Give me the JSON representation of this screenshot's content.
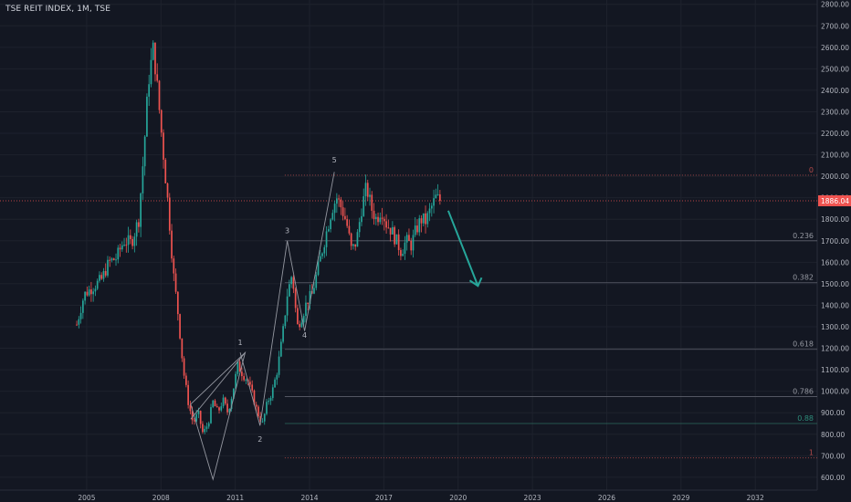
{
  "header": {
    "title": "TSE REIT INDEX, 1M, TSE"
  },
  "colors": {
    "background": "#131722",
    "grid": "#1e222d",
    "up": "#26a69a",
    "down": "#ef5350",
    "axis_text": "#b2b5be",
    "price_badge": "#ef5350",
    "wave_lines": "#9598a1",
    "arrow": "#26a69a",
    "fib_line": "#5d606b"
  },
  "chart_data": {
    "type": "candlestick",
    "symbol": "TSE REIT INDEX",
    "interval": "1M",
    "exchange": "TSE",
    "x_ticks": [
      "2005",
      "2008",
      "2011",
      "2014",
      "2017",
      "2020",
      "2023",
      "2026",
      "2029",
      "2032"
    ],
    "y_ticks": [
      "600.00",
      "700.00",
      "800.00",
      "900.00",
      "1000.00",
      "1100.00",
      "1200.00",
      "1300.00",
      "1400.00",
      "1500.00",
      "1600.00",
      "1700.00",
      "1800.00",
      "1900.00",
      "2000.00",
      "2100.00",
      "2200.00",
      "2300.00",
      "2400.00",
      "2500.00",
      "2600.00",
      "2700.00",
      "2800.00"
    ],
    "ylim": [
      540,
      2820
    ],
    "xlim": [
      2001.5,
      2034.5
    ],
    "current_price": {
      "value": 1886,
      "label": "1886.04"
    },
    "price_path": [
      [
        2004.6,
        1310
      ],
      [
        2004.9,
        1450
      ],
      [
        2005.2,
        1480
      ],
      [
        2005.6,
        1520
      ],
      [
        2005.9,
        1600
      ],
      [
        2006.2,
        1620
      ],
      [
        2006.5,
        1700
      ],
      [
        2006.8,
        1690
      ],
      [
        2007.1,
        1800
      ],
      [
        2007.3,
        2100
      ],
      [
        2007.5,
        2450
      ],
      [
        2007.7,
        2600
      ],
      [
        2007.9,
        2350
      ],
      [
        2008.1,
        2100
      ],
      [
        2008.3,
        1850
      ],
      [
        2008.5,
        1550
      ],
      [
        2008.7,
        1350
      ],
      [
        2008.9,
        1100
      ],
      [
        2009.1,
        950
      ],
      [
        2009.3,
        850
      ],
      [
        2009.5,
        900
      ],
      [
        2009.7,
        800
      ],
      [
        2009.9,
        850
      ],
      [
        2010.1,
        950
      ],
      [
        2010.3,
        900
      ],
      [
        2010.5,
        960
      ],
      [
        2010.7,
        900
      ],
      [
        2010.9,
        1000
      ],
      [
        2011.1,
        1120
      ],
      [
        2011.3,
        1080
      ],
      [
        2011.5,
        1050
      ],
      [
        2011.7,
        980
      ],
      [
        2011.9,
        900
      ],
      [
        2012.1,
        850
      ],
      [
        2012.3,
        950
      ],
      [
        2012.5,
        1000
      ],
      [
        2012.7,
        1100
      ],
      [
        2012.9,
        1250
      ],
      [
        2013.1,
        1450
      ],
      [
        2013.3,
        1550
      ],
      [
        2013.5,
        1300
      ],
      [
        2013.7,
        1350
      ],
      [
        2013.9,
        1420
      ],
      [
        2014.1,
        1450
      ],
      [
        2014.3,
        1550
      ],
      [
        2014.5,
        1650
      ],
      [
        2014.7,
        1750
      ],
      [
        2014.9,
        1850
      ],
      [
        2015.1,
        1900
      ],
      [
        2015.3,
        1850
      ],
      [
        2015.5,
        1780
      ],
      [
        2015.7,
        1650
      ],
      [
        2015.9,
        1700
      ],
      [
        2016.1,
        1850
      ],
      [
        2016.3,
        1950
      ],
      [
        2016.5,
        1850
      ],
      [
        2016.7,
        1800
      ],
      [
        2016.9,
        1850
      ],
      [
        2017.1,
        1780
      ],
      [
        2017.3,
        1750
      ],
      [
        2017.5,
        1700
      ],
      [
        2017.7,
        1650
      ],
      [
        2017.9,
        1700
      ],
      [
        2018.1,
        1680
      ],
      [
        2018.3,
        1750
      ],
      [
        2018.5,
        1800
      ],
      [
        2018.7,
        1790
      ],
      [
        2018.9,
        1850
      ],
      [
        2019.1,
        1900
      ],
      [
        2019.3,
        1886
      ]
    ],
    "wave_labels": [
      {
        "label": "1",
        "x": 2011.2,
        "y": 1215
      },
      {
        "label": "2",
        "x": 2012.0,
        "y": 765
      },
      {
        "label": "3",
        "x": 2013.1,
        "y": 1735
      },
      {
        "label": "4",
        "x": 2013.8,
        "y": 1250
      },
      {
        "label": "5",
        "x": 2015.0,
        "y": 2065
      }
    ],
    "fibonacci": [
      {
        "ratio": "0",
        "price": 2005
      },
      {
        "ratio": "0.236",
        "price": 1700
      },
      {
        "ratio": "0.382",
        "price": 1505
      },
      {
        "ratio": "0.618",
        "price": 1195
      },
      {
        "ratio": "0.786",
        "price": 975
      },
      {
        "ratio": "0.88",
        "price": 850
      },
      {
        "ratio": "1",
        "price": 690
      }
    ]
  }
}
